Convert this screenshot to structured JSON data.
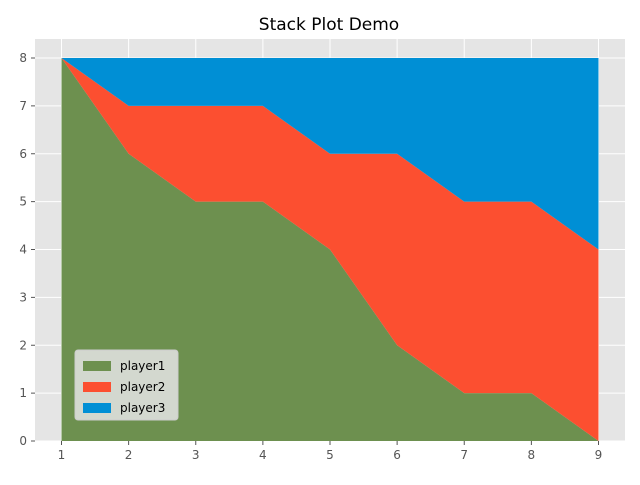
{
  "chart_data": {
    "type": "area",
    "stacked": true,
    "title": "Stack Plot Demo",
    "xlabel": "",
    "ylabel": "",
    "x": [
      1,
      2,
      3,
      4,
      5,
      6,
      7,
      8,
      9
    ],
    "xlim": [
      1,
      9
    ],
    "ylim": [
      0,
      8
    ],
    "x_ticks": [
      1,
      2,
      3,
      4,
      5,
      6,
      7,
      8,
      9
    ],
    "y_ticks": [
      0,
      1,
      2,
      3,
      4,
      5,
      6,
      7,
      8
    ],
    "grid": true,
    "legend_position": "lower-left",
    "series": [
      {
        "name": "player1",
        "color": "#6d904f",
        "values": [
          8,
          6,
          5,
          5,
          4,
          2,
          1,
          1,
          0
        ]
      },
      {
        "name": "player2",
        "color": "#fc4f30",
        "values": [
          0,
          1,
          2,
          2,
          2,
          4,
          4,
          4,
          4
        ]
      },
      {
        "name": "player3",
        "color": "#008fd5",
        "values": [
          0,
          1,
          1,
          1,
          2,
          2,
          3,
          3,
          4
        ]
      }
    ],
    "colors": {
      "plot_background": "#e5e5e5",
      "grid": "#ffffff",
      "tick": "#555555"
    }
  }
}
